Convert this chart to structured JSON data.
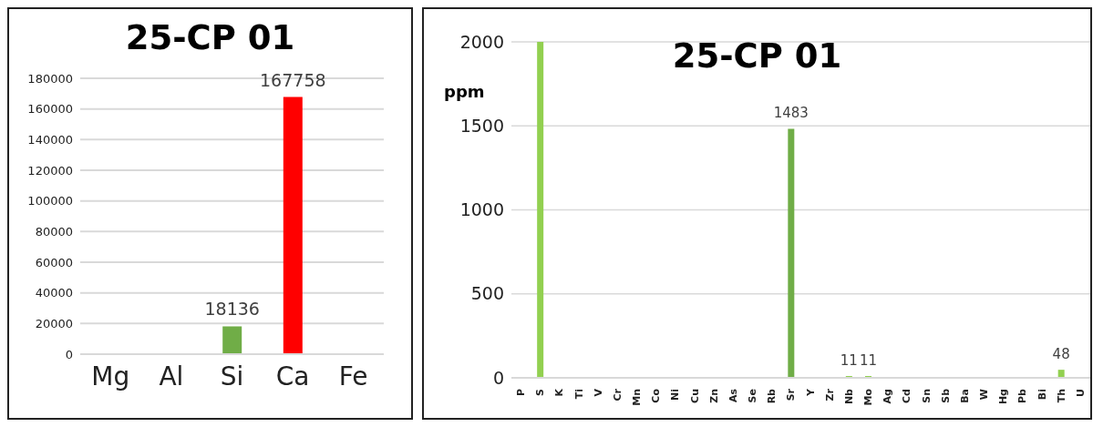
{
  "chart_data": [
    {
      "type": "bar",
      "title": "25-CP 01",
      "categories": [
        "Mg",
        "Al",
        "Si",
        "Ca",
        "Fe"
      ],
      "values": [
        0,
        0,
        18136,
        167758,
        0
      ],
      "colors": [
        "#70ad47",
        "#70ad47",
        "#70ad47",
        "#ff0000",
        "#70ad47"
      ],
      "value_labels": [
        null,
        null,
        "18136",
        "167758",
        null
      ],
      "ylim": [
        0,
        180000
      ],
      "yticks": [
        0,
        20000,
        40000,
        60000,
        80000,
        100000,
        120000,
        140000,
        160000,
        180000
      ],
      "grid": "y"
    },
    {
      "type": "bar",
      "title": "25-CP 01",
      "ylabel": "ppm",
      "categories": [
        "P",
        "S",
        "K",
        "Ti",
        "V",
        "Cr",
        "Mn",
        "Co",
        "Ni",
        "Cu",
        "Zn",
        "As",
        "Se",
        "Rb",
        "Sr",
        "Y",
        "Zr",
        "Nb",
        "Mo",
        "Ag",
        "Cd",
        "Sn",
        "Sb",
        "Ba",
        "W",
        "Hg",
        "Pb",
        "Bi",
        "Th",
        "U"
      ],
      "values": [
        0,
        2000,
        0,
        0,
        0,
        0,
        0,
        0,
        0,
        0,
        0,
        0,
        0,
        0,
        1483,
        0,
        0,
        11,
        11,
        0,
        0,
        0,
        0,
        0,
        0,
        0,
        0,
        0,
        48,
        0
      ],
      "colors": [
        "#70ad47",
        "#92d050",
        "#70ad47",
        "#70ad47",
        "#70ad47",
        "#70ad47",
        "#70ad47",
        "#70ad47",
        "#70ad47",
        "#70ad47",
        "#70ad47",
        "#70ad47",
        "#70ad47",
        "#70ad47",
        "#70ad47",
        "#70ad47",
        "#70ad47",
        "#92d050",
        "#92d050",
        "#70ad47",
        "#70ad47",
        "#70ad47",
        "#70ad47",
        "#70ad47",
        "#70ad47",
        "#70ad47",
        "#70ad47",
        "#70ad47",
        "#92d050",
        "#70ad47"
      ],
      "value_labels": [
        null,
        null,
        null,
        null,
        null,
        null,
        null,
        null,
        null,
        null,
        null,
        null,
        null,
        null,
        "1483",
        null,
        null,
        "11",
        "11",
        null,
        null,
        null,
        null,
        null,
        null,
        null,
        null,
        null,
        "48",
        null
      ],
      "ylim": [
        0,
        2000
      ],
      "yticks": [
        0,
        500,
        1000,
        1500,
        2000
      ],
      "grid": "y"
    }
  ]
}
